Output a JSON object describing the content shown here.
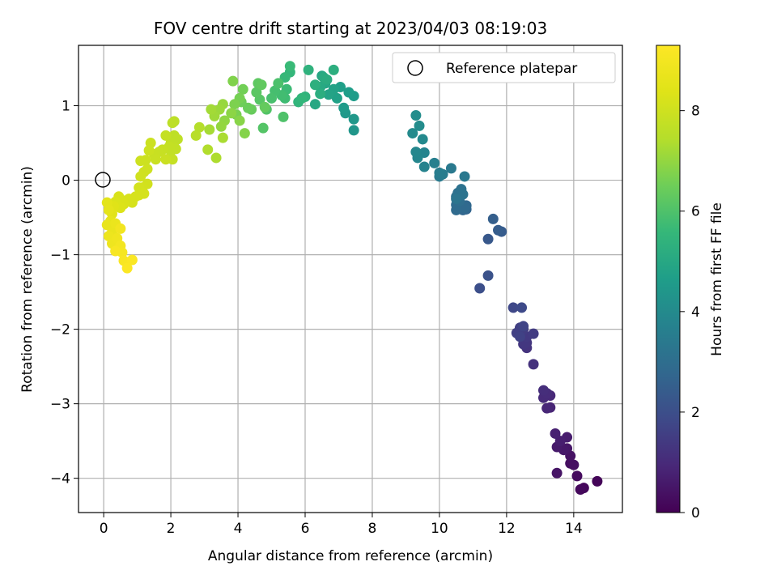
{
  "chart_data": {
    "type": "scatter",
    "title": "FOV centre drift starting at 2023/04/03 08:19:03",
    "xlabel": "Angular distance from reference (arcmin)",
    "ylabel": "Rotation from reference (arcmin)",
    "xlim": [
      -0.75,
      15.45
    ],
    "ylim": [
      -4.46,
      1.81
    ],
    "xticks": [
      0,
      2,
      4,
      6,
      8,
      10,
      12,
      14
    ],
    "yticks": [
      -4,
      -3,
      -2,
      -1,
      0,
      1
    ],
    "grid": true,
    "legend": {
      "position": "top-right",
      "entries": [
        "Reference platepar"
      ]
    },
    "reference_point": {
      "x": 0,
      "y": 0
    },
    "colorbar": {
      "label": "Hours from first FF file",
      "colormap": "viridis",
      "range": [
        0,
        9.3
      ],
      "ticks": [
        0,
        2,
        4,
        6,
        8
      ]
    },
    "points": [
      [
        14.7,
        -4.04,
        0.1
      ],
      [
        14.3,
        -4.13,
        0.15
      ],
      [
        14.2,
        -4.15,
        0.2
      ],
      [
        14.1,
        -3.97,
        0.25
      ],
      [
        13.9,
        -3.8,
        0.3
      ],
      [
        14.0,
        -3.82,
        0.35
      ],
      [
        13.9,
        -3.7,
        0.4
      ],
      [
        13.5,
        -3.93,
        0.45
      ],
      [
        13.8,
        -3.6,
        0.5
      ],
      [
        13.7,
        -3.62,
        0.55
      ],
      [
        13.5,
        -3.58,
        0.6
      ],
      [
        13.8,
        -3.45,
        0.65
      ],
      [
        13.6,
        -3.5,
        0.7
      ],
      [
        13.45,
        -3.4,
        0.75
      ],
      [
        13.3,
        -3.05,
        0.85
      ],
      [
        13.2,
        -3.06,
        0.9
      ],
      [
        13.3,
        -2.89,
        0.95
      ],
      [
        13.1,
        -2.92,
        1.0
      ],
      [
        13.2,
        -2.86,
        1.05
      ],
      [
        13.1,
        -2.82,
        1.1
      ],
      [
        12.8,
        -2.47,
        1.2
      ],
      [
        12.6,
        -2.25,
        1.25
      ],
      [
        12.6,
        -2.18,
        1.3
      ],
      [
        12.5,
        -2.2,
        1.35
      ],
      [
        12.6,
        -2.1,
        1.4
      ],
      [
        12.8,
        -2.06,
        1.45
      ],
      [
        12.5,
        -2.0,
        1.5
      ],
      [
        12.4,
        -1.98,
        1.55
      ],
      [
        12.3,
        -2.05,
        1.6
      ],
      [
        12.4,
        -2.1,
        1.65
      ],
      [
        12.5,
        -1.96,
        1.7
      ],
      [
        12.2,
        -1.71,
        1.8
      ],
      [
        12.45,
        -1.71,
        1.85
      ],
      [
        11.2,
        -1.45,
        2.0
      ],
      [
        11.45,
        -1.28,
        2.1
      ],
      [
        11.45,
        -0.79,
        2.3
      ],
      [
        11.85,
        -0.69,
        2.4
      ],
      [
        11.75,
        -0.67,
        2.45
      ],
      [
        11.6,
        -0.52,
        2.5
      ],
      [
        10.8,
        -0.39,
        2.7
      ],
      [
        10.7,
        -0.4,
        2.75
      ],
      [
        10.8,
        -0.34,
        2.8
      ],
      [
        10.75,
        -0.37,
        2.85
      ],
      [
        10.5,
        -0.4,
        2.9
      ],
      [
        10.5,
        -0.33,
        2.95
      ],
      [
        10.6,
        -0.28,
        3.0
      ],
      [
        10.5,
        -0.22,
        3.05
      ],
      [
        10.55,
        -0.17,
        3.1
      ],
      [
        10.65,
        -0.12,
        3.15
      ],
      [
        10.7,
        -0.19,
        3.2
      ],
      [
        10.5,
        -0.25,
        3.25
      ],
      [
        10.75,
        0.05,
        3.35
      ],
      [
        10.35,
        0.16,
        3.4
      ],
      [
        10.0,
        0.05,
        3.45
      ],
      [
        10.1,
        0.08,
        3.5
      ],
      [
        10.0,
        0.1,
        3.55
      ],
      [
        9.85,
        0.23,
        3.6
      ],
      [
        9.55,
        0.18,
        3.75
      ],
      [
        9.55,
        0.37,
        3.8
      ],
      [
        9.35,
        0.3,
        3.85
      ],
      [
        9.3,
        0.38,
        3.9
      ],
      [
        9.5,
        0.55,
        3.95
      ],
      [
        9.2,
        0.63,
        4.0
      ],
      [
        9.4,
        0.73,
        4.05
      ],
      [
        9.3,
        0.87,
        4.1
      ],
      [
        7.45,
        0.67,
        4.4
      ],
      [
        7.45,
        0.82,
        4.45
      ],
      [
        7.2,
        0.9,
        4.5
      ],
      [
        7.15,
        0.97,
        4.55
      ],
      [
        7.45,
        1.13,
        4.6
      ],
      [
        7.3,
        1.18,
        4.65
      ],
      [
        7.05,
        1.25,
        4.7
      ],
      [
        6.95,
        1.1,
        4.75
      ],
      [
        6.85,
        1.22,
        4.8
      ],
      [
        6.7,
        1.15,
        4.85
      ],
      [
        6.6,
        1.3,
        4.9
      ],
      [
        6.5,
        1.4,
        4.95
      ],
      [
        6.3,
        1.02,
        5.0
      ],
      [
        6.45,
        1.25,
        5.05
      ],
      [
        6.55,
        1.38,
        5.1
      ],
      [
        6.65,
        1.35,
        5.15
      ],
      [
        6.45,
        1.16,
        5.2
      ],
      [
        6.85,
        1.48,
        5.25
      ],
      [
        6.3,
        1.28,
        5.3
      ],
      [
        6.1,
        1.48,
        5.35
      ],
      [
        6.0,
        1.12,
        5.4
      ],
      [
        5.8,
        1.05,
        5.45
      ],
      [
        5.9,
        1.1,
        5.5
      ],
      [
        5.55,
        1.45,
        5.55
      ],
      [
        5.4,
        1.38,
        5.6
      ],
      [
        5.55,
        1.53,
        5.65
      ],
      [
        5.45,
        1.22,
        5.7
      ],
      [
        5.4,
        1.1,
        5.75
      ],
      [
        5.3,
        1.14,
        5.8
      ],
      [
        5.1,
        1.2,
        5.85
      ],
      [
        5.0,
        1.1,
        5.9
      ],
      [
        5.2,
        1.3,
        5.95
      ],
      [
        5.35,
        0.85,
        6.0
      ],
      [
        4.85,
        0.95,
        6.05
      ],
      [
        4.75,
        0.7,
        6.1
      ],
      [
        4.65,
        1.08,
        6.15
      ],
      [
        4.55,
        1.18,
        6.2
      ],
      [
        4.6,
        1.3,
        6.25
      ],
      [
        4.7,
        1.28,
        6.3
      ],
      [
        4.8,
        0.98,
        6.35
      ],
      [
        4.4,
        0.95,
        6.4
      ],
      [
        4.3,
        0.97,
        6.45
      ],
      [
        4.1,
        1.05,
        6.5
      ],
      [
        4.15,
        1.22,
        6.55
      ],
      [
        4.05,
        1.1,
        6.6
      ],
      [
        3.95,
        0.88,
        6.65
      ],
      [
        3.9,
        1.02,
        6.7
      ],
      [
        3.85,
        1.33,
        6.75
      ],
      [
        4.2,
        0.63,
        6.8
      ],
      [
        4.05,
        0.8,
        6.85
      ],
      [
        3.8,
        0.9,
        6.9
      ],
      [
        3.6,
        0.8,
        6.95
      ],
      [
        3.5,
        0.72,
        7.0
      ],
      [
        3.55,
        1.02,
        7.05
      ],
      [
        3.45,
        0.95,
        7.1
      ],
      [
        3.3,
        0.86,
        7.15
      ],
      [
        3.2,
        0.95,
        7.2
      ],
      [
        3.15,
        0.68,
        7.25
      ],
      [
        3.55,
        0.57,
        7.3
      ],
      [
        3.35,
        0.3,
        7.35
      ],
      [
        3.1,
        0.41,
        7.4
      ],
      [
        2.85,
        0.71,
        7.45
      ],
      [
        2.75,
        0.6,
        7.5
      ],
      [
        2.1,
        0.79,
        7.6
      ],
      [
        2.05,
        0.77,
        7.62
      ],
      [
        2.1,
        0.6,
        7.64
      ],
      [
        2.2,
        0.55,
        7.66
      ],
      [
        2.0,
        0.5,
        7.68
      ],
      [
        2.1,
        0.45,
        7.7
      ],
      [
        2.15,
        0.42,
        7.72
      ],
      [
        2.0,
        0.39,
        7.74
      ],
      [
        1.95,
        0.45,
        7.76
      ],
      [
        1.85,
        0.6,
        7.78
      ],
      [
        2.05,
        0.28,
        7.8
      ],
      [
        1.75,
        0.41,
        7.82
      ],
      [
        1.65,
        0.38,
        7.84
      ],
      [
        1.5,
        0.35,
        7.86
      ],
      [
        1.55,
        0.28,
        7.88
      ],
      [
        1.85,
        0.28,
        7.9
      ],
      [
        1.4,
        0.5,
        7.92
      ],
      [
        1.35,
        0.4,
        7.94
      ],
      [
        1.25,
        0.27,
        7.96
      ],
      [
        1.1,
        0.26,
        7.98
      ],
      [
        1.3,
        0.15,
        8.0
      ],
      [
        1.2,
        0.11,
        8.02
      ],
      [
        1.1,
        0.05,
        8.04
      ],
      [
        1.3,
        -0.05,
        8.06
      ],
      [
        1.15,
        -0.1,
        8.08
      ],
      [
        1.05,
        -0.1,
        8.1
      ],
      [
        1.05,
        -0.2,
        8.12
      ],
      [
        1.2,
        -0.18,
        8.14
      ],
      [
        0.95,
        -0.22,
        8.16
      ],
      [
        0.85,
        -0.3,
        8.18
      ],
      [
        0.75,
        -0.25,
        8.2
      ],
      [
        0.55,
        -0.27,
        8.22
      ],
      [
        0.45,
        -0.22,
        8.24
      ],
      [
        0.6,
        -0.32,
        8.26
      ],
      [
        0.35,
        -0.29,
        8.28
      ],
      [
        0.5,
        -0.37,
        8.3
      ],
      [
        0.3,
        -0.35,
        8.4
      ],
      [
        0.25,
        -0.45,
        8.45
      ],
      [
        0.1,
        -0.3,
        8.5
      ],
      [
        0.15,
        -0.4,
        8.55
      ],
      [
        0.2,
        -0.55,
        8.6
      ],
      [
        0.1,
        -0.6,
        8.65
      ],
      [
        0.25,
        -0.7,
        8.7
      ],
      [
        0.35,
        -0.58,
        8.75
      ],
      [
        0.15,
        -0.75,
        8.8
      ],
      [
        0.25,
        -0.85,
        8.85
      ],
      [
        0.4,
        -0.78,
        8.9
      ],
      [
        0.5,
        -0.65,
        8.95
      ],
      [
        0.5,
        -0.88,
        9.0
      ],
      [
        0.55,
        -0.97,
        9.05
      ],
      [
        0.35,
        -0.95,
        9.1
      ],
      [
        0.6,
        -1.08,
        9.15
      ],
      [
        0.85,
        -1.07,
        9.2
      ],
      [
        0.7,
        -1.18,
        9.25
      ]
    ]
  }
}
